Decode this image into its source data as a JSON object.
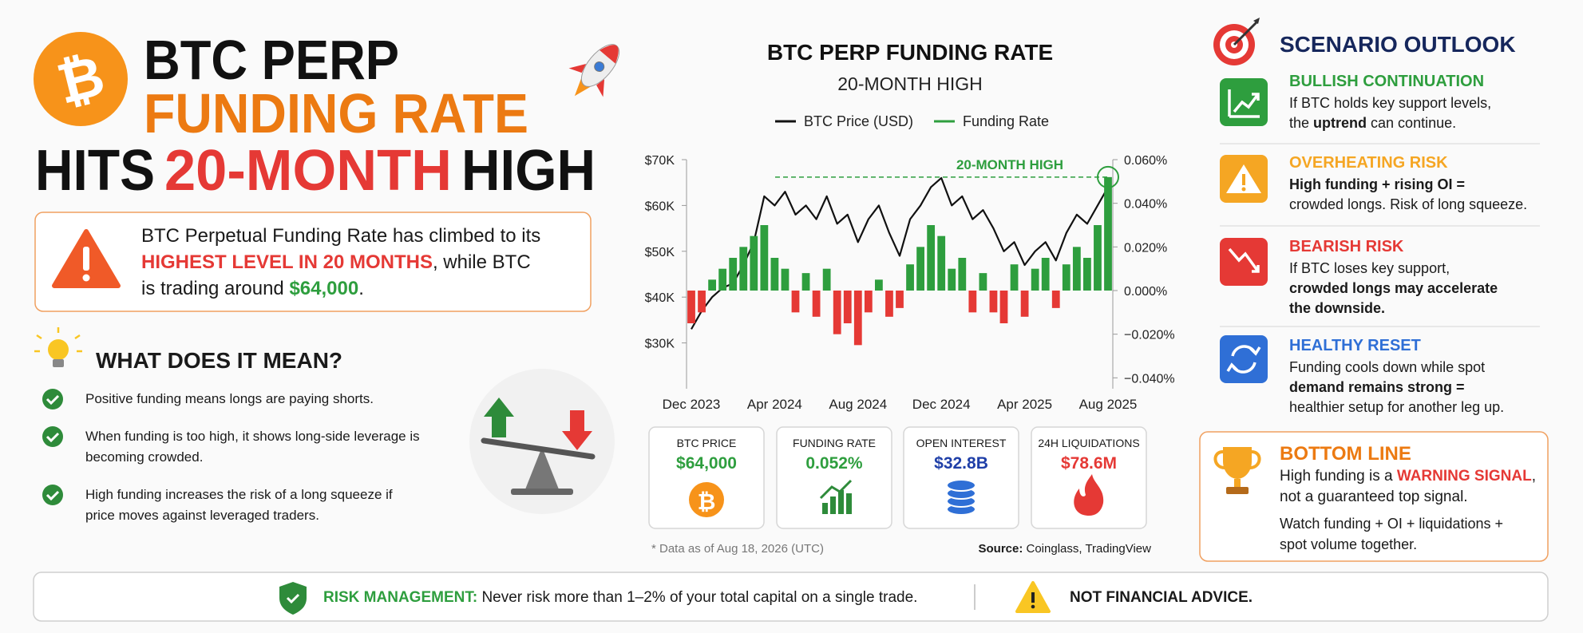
{
  "header": {
    "logo": "₿",
    "line1": "BTC PERP",
    "line2": "FUNDING RATE",
    "line3": [
      "HITS",
      "20-MONTH",
      "HIGH"
    ]
  },
  "alert": {
    "lines": [
      [
        {
          "text": "BTC Perpetual Funding Rate has climbed to its"
        }
      ],
      [
        {
          "text": "HIGHEST LEVEL IN 20 MONTHS",
          "bold": true,
          "color": "#e53935"
        },
        {
          "text": ", while BTC"
        }
      ],
      [
        {
          "text": "is trading around "
        },
        {
          "text": "$64,000",
          "bold": true,
          "color": "#2e9e3e"
        },
        {
          "text": "."
        }
      ]
    ]
  },
  "meaning": {
    "title": "WHAT DOES IT MEAN?",
    "items": [
      [
        "Positive funding means longs are paying shorts."
      ],
      [
        "When funding is too high, it shows long-side leverage is",
        "becoming crowded."
      ],
      [
        "High funding increases the risk of a long squeeze if",
        "price moves against leveraged traders."
      ]
    ]
  },
  "chart_data": {
    "type": "line",
    "title": "BTC PERP FUNDING RATE",
    "subtitle": "20-MONTH HIGH",
    "categories": [
      "Dec 2023",
      null,
      null,
      null,
      null,
      null,
      null,
      null,
      "Apr 2024",
      null,
      null,
      null,
      null,
      null,
      null,
      null,
      "Aug 2024",
      null,
      null,
      null,
      null,
      null,
      null,
      null,
      "Dec 2024",
      null,
      null,
      null,
      null,
      null,
      null,
      null,
      "Apr 2025",
      null,
      null,
      null,
      null,
      null,
      null,
      null,
      "Aug 2025"
    ],
    "series": [
      {
        "name": "BTC Price (USD)",
        "color": "#111111",
        "values": [
          33000,
          37000,
          40000,
          42000,
          43000,
          47000,
          52000,
          62000,
          60000,
          63000,
          58000,
          60000,
          57000,
          62000,
          56000,
          58000,
          52000,
          57000,
          60000,
          54000,
          49000,
          57000,
          60000,
          64000,
          66000,
          60000,
          62000,
          57000,
          59000,
          55000,
          50000,
          52000,
          47000,
          50000,
          52000,
          48000,
          54000,
          58000,
          56000,
          60000,
          64000
        ]
      },
      {
        "name": "Funding Rate",
        "type": "bar",
        "axis": "y2",
        "color": "#2e9e3e",
        "negative_color": "#e53935",
        "values": [
          -0.015,
          -0.01,
          0.005,
          0.01,
          0.015,
          0.02,
          0.025,
          0.03,
          0.015,
          0.01,
          -0.01,
          0.008,
          -0.012,
          0.01,
          -0.02,
          -0.015,
          -0.025,
          -0.01,
          0.005,
          -0.012,
          -0.008,
          0.012,
          0.02,
          0.03,
          0.025,
          0.01,
          0.015,
          -0.01,
          0.008,
          -0.01,
          -0.015,
          0.012,
          -0.012,
          0.01,
          0.015,
          -0.008,
          0.012,
          0.02,
          0.015,
          0.03,
          0.052
        ]
      }
    ],
    "ylim": [
      20000,
      70000
    ],
    "yticks": [
      {
        "value": 30000,
        "label": "$30K"
      },
      {
        "value": 40000,
        "label": "$40K"
      },
      {
        "value": 50000,
        "label": "$50K"
      },
      {
        "value": 60000,
        "label": "$60K"
      },
      {
        "value": 70000,
        "label": "$70K"
      }
    ],
    "y2lim": [
      -0.045,
      0.06
    ],
    "y2ticks": [
      {
        "value": -0.04,
        "label": "−0.040%"
      },
      {
        "value": -0.02,
        "label": "−0.020%"
      },
      {
        "value": 0,
        "label": "0.000%"
      },
      {
        "value": 0.02,
        "label": "0.020%"
      },
      {
        "value": 0.04,
        "label": "0.040%"
      },
      {
        "value": 0.06,
        "label": "0.060%"
      }
    ],
    "annotations": [
      {
        "text": "20-MONTH HIGH",
        "value": 0.052,
        "axis": "y2",
        "color": "#2e9e3e"
      }
    ]
  },
  "stats": [
    {
      "label": "BTC PRICE",
      "value": "$64,000",
      "color": "#2e9e3e"
    },
    {
      "label": "FUNDING RATE",
      "value": "0.052%",
      "color": "#2e9e3e"
    },
    {
      "label": "OPEN INTEREST",
      "value": "$32.8B",
      "color": "#1f3fa8"
    },
    {
      "label": "24H LIQUIDATIONS",
      "value": "$78.6M",
      "color": "#e53935"
    }
  ],
  "footnote": "* Data as of Aug 18, 2026 (UTC)",
  "source": [
    {
      "text": "Source:",
      "bold": true
    },
    {
      "text": " Coinglass, TradingView"
    }
  ],
  "scenarios": {
    "title": "SCENARIO OUTLOOK",
    "items": [
      {
        "title": "BULLISH CONTINUATION",
        "color": "#2e9e3e",
        "lines": [
          [
            {
              "text": "If BTC holds key support levels,"
            }
          ],
          [
            {
              "text": "the "
            },
            {
              "text": "uptrend",
              "bold": true
            },
            {
              "text": " can continue."
            }
          ]
        ]
      },
      {
        "title": "OVERHEATING RISK",
        "color": "#f5a623",
        "lines": [
          [
            {
              "text": "High funding + rising OI =",
              "bold": true
            }
          ],
          [
            {
              "text": "crowded longs. Risk of long squeeze."
            }
          ]
        ]
      },
      {
        "title": "BEARISH RISK",
        "color": "#e53935",
        "lines": [
          [
            {
              "text": "If BTC loses key support,"
            }
          ],
          [
            {
              "text": "crowded longs may accelerate",
              "bold": true
            }
          ],
          [
            {
              "text": "the downside.",
              "bold": true
            }
          ]
        ]
      },
      {
        "title": "HEALTHY RESET",
        "color": "#2f6fd6",
        "lines": [
          [
            {
              "text": "Funding cools down while spot"
            }
          ],
          [
            {
              "text": "demand remains strong =",
              "bold": true
            }
          ],
          [
            {
              "text": "healthier setup for another leg up."
            }
          ]
        ]
      }
    ]
  },
  "bottom_line": {
    "title": "BOTTOM LINE",
    "lines": [
      [
        {
          "text": "High funding is a "
        },
        {
          "text": "WARNING SIGNAL",
          "bold": true,
          "color": "#e53935"
        },
        {
          "text": ","
        }
      ],
      [
        {
          "text": "not a guaranteed top signal."
        }
      ]
    ],
    "lines2": [
      [
        {
          "text": "Watch funding + OI + liquidations +"
        }
      ],
      [
        {
          "text": "spot volume together."
        }
      ]
    ]
  },
  "footer": {
    "risk": [
      {
        "text": "RISK MANAGEMENT:",
        "bold": true,
        "color": "#2e9e3e"
      },
      {
        "text": " Never risk more than 1–2% of your total capital on a single trade."
      }
    ],
    "disclaimer": "NOT FINANCIAL ADVICE."
  }
}
